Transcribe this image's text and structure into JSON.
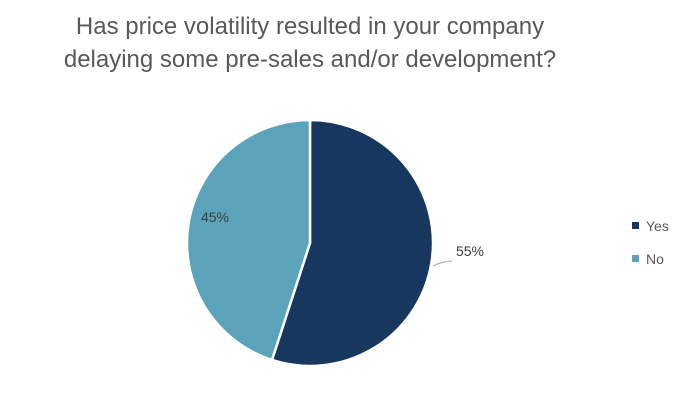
{
  "chart_data": {
    "type": "pie",
    "title": "Has price volatility resulted in your company delaying some pre-sales and/or development?",
    "title_lines": [
      "Has price volatility resulted in your company",
      "delaying some pre-sales and/or development?"
    ],
    "categories": [
      "Yes",
      "No"
    ],
    "values": [
      55,
      45
    ],
    "labels": [
      "55%",
      "45%"
    ],
    "colors": [
      "#17375E",
      "#5BA3BA"
    ],
    "legend": "right"
  }
}
